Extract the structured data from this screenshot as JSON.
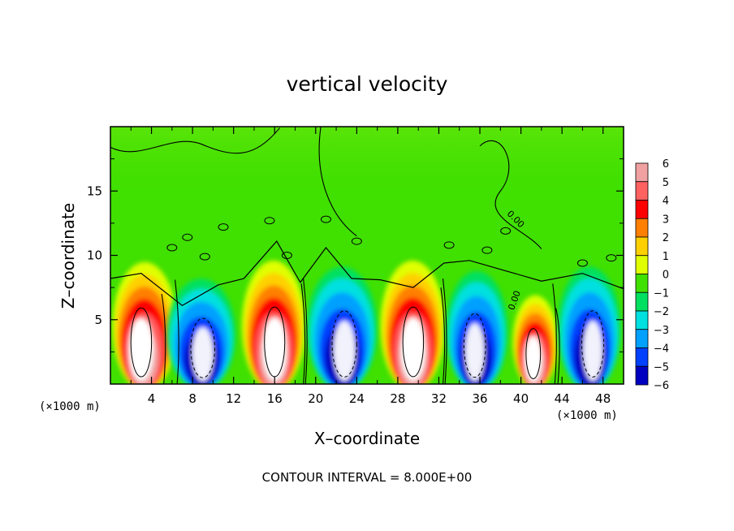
{
  "chart_data": {
    "type": "heatmap",
    "title": "vertical velocity",
    "xlabel": "X–coordinate",
    "ylabel": "Z–coordinate",
    "x_unit": "(×1000 m)",
    "y_unit": "(×1000 m)",
    "xlim": [
      0,
      50
    ],
    "ylim": [
      0,
      20
    ],
    "x_ticks": [
      4,
      8,
      12,
      16,
      20,
      24,
      28,
      32,
      36,
      40,
      44,
      48
    ],
    "y_ticks": [
      5,
      10,
      15
    ],
    "contour_interval_text": "CONTOUR INTERVAL = 8.000E+00",
    "contour_label": "0.00",
    "colorbar": {
      "levels": [
        6,
        5,
        4,
        3,
        2,
        1,
        0,
        -1,
        -2,
        -3,
        -4,
        -5,
        -6
      ],
      "labels": [
        "6",
        "5",
        "4",
        "3",
        "2",
        "1",
        "0",
        "−1",
        "−2",
        "−3",
        "−4",
        "−5",
        "−6"
      ],
      "colors": [
        "#f0a0a0",
        "#ff6060",
        "#ff0000",
        "#ff8000",
        "#ffd000",
        "#e0ff00",
        "#40e000",
        "#00e060",
        "#00e0e0",
        "#00a0ff",
        "#0040ff",
        "#0000c0",
        "#6000a0"
      ]
    },
    "background_color": "#40e000",
    "cells": [
      {
        "sign": "up",
        "xmin": 0.2,
        "xmax": 6.5,
        "ztop": 8.1,
        "xcore": 3.0,
        "peak": 6
      },
      {
        "sign": "down",
        "xmin": 5.2,
        "xmax": 12.5,
        "ztop": 7.0,
        "xcore": 9.0,
        "peak": -6
      },
      {
        "sign": "up",
        "xmin": 12.8,
        "xmax": 19.0,
        "ztop": 8.2,
        "xcore": 16.0,
        "peak": 6
      },
      {
        "sign": "down",
        "xmin": 18.8,
        "xmax": 26.3,
        "ztop": 7.8,
        "xcore": 22.8,
        "peak": -6
      },
      {
        "sign": "up",
        "xmin": 26.3,
        "xmax": 32.6,
        "ztop": 8.2,
        "xcore": 29.5,
        "peak": 6
      },
      {
        "sign": "down",
        "xmin": 32.4,
        "xmax": 39.0,
        "ztop": 7.5,
        "xcore": 35.5,
        "peak": -6
      },
      {
        "sign": "up",
        "xmin": 39.2,
        "xmax": 43.6,
        "ztop": 5.9,
        "xcore": 41.2,
        "peak": 5.5
      },
      {
        "sign": "down",
        "xmin": 43.3,
        "xmax": 50.0,
        "ztop": 7.8,
        "xcore": 47.0,
        "peak": -6
      }
    ]
  }
}
